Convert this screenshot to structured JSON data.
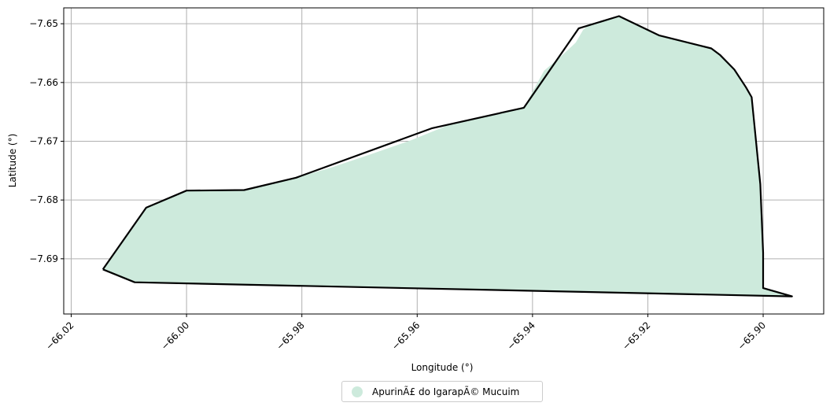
{
  "chart_data": {
    "type": "map",
    "xlabel": "Longitude (°)",
    "ylabel": "Latitude (°)",
    "xlim": [
      -66.0213,
      -65.8895
    ],
    "ylim": [
      -7.6994,
      -7.6473
    ],
    "grid": true,
    "x_ticks": [
      -66.02,
      -66.0,
      -65.98,
      -65.96,
      -65.94,
      -65.92,
      -65.9
    ],
    "x_tick_labels": [
      "−66.02",
      "−66.00",
      "−65.98",
      "−65.96",
      "−65.94",
      "−65.92",
      "−65.90"
    ],
    "y_ticks": [
      -7.65,
      -7.66,
      -7.67,
      -7.68,
      -7.69
    ],
    "y_tick_labels": [
      "−7.65",
      "−7.66",
      "−7.67",
      "−7.68",
      "−7.69"
    ],
    "legend_position": "bottom-center",
    "legend_entries": [
      {
        "label": "ApurinÃ£ do IgarapÃ© Mucuim",
        "color": "#cdeadc"
      }
    ],
    "fill_polygon": [
      [
        -65.9312,
        -7.651
      ],
      [
        -65.93,
        -7.65
      ],
      [
        -65.925,
        -7.6487
      ],
      [
        -65.918,
        -7.652
      ],
      [
        -65.909,
        -7.6542
      ],
      [
        -65.9075,
        -7.6553
      ],
      [
        -65.905,
        -7.6578
      ],
      [
        -65.903,
        -7.6608
      ],
      [
        -65.902,
        -7.6625
      ],
      [
        -65.9005,
        -7.6773
      ],
      [
        -65.9,
        -7.689
      ],
      [
        -65.9,
        -7.695
      ],
      [
        -65.895,
        -7.6964
      ],
      [
        -66.009,
        -7.694
      ],
      [
        -66.0145,
        -7.6918
      ],
      [
        -66.007,
        -7.6813
      ],
      [
        -66.0,
        -7.6784
      ],
      [
        -65.99,
        -7.6783
      ],
      [
        -65.981,
        -7.6762
      ],
      [
        -65.975,
        -7.6745
      ],
      [
        -65.968,
        -7.6722
      ],
      [
        -65.961,
        -7.6698
      ],
      [
        -65.955,
        -7.6674
      ],
      [
        -65.9415,
        -7.6643
      ],
      [
        -65.938,
        -7.658
      ],
      [
        -65.935,
        -7.6555
      ],
      [
        -65.9325,
        -7.6532
      ]
    ],
    "boundary": [
      [
        -66.0145,
        -7.6918
      ],
      [
        -66.007,
        -7.6813
      ],
      [
        -66.0,
        -7.6784
      ],
      [
        -65.99,
        -7.6783
      ],
      [
        -65.981,
        -7.6762
      ],
      [
        -65.9575,
        -7.6678
      ],
      [
        -65.9415,
        -7.6643
      ],
      [
        -65.932,
        -7.6508
      ],
      [
        -65.925,
        -7.6487
      ],
      [
        -65.918,
        -7.652
      ],
      [
        -65.909,
        -7.6542
      ],
      [
        -65.9075,
        -7.6553
      ],
      [
        -65.905,
        -7.6578
      ],
      [
        -65.903,
        -7.6608
      ],
      [
        -65.902,
        -7.6625
      ],
      [
        -65.9005,
        -7.6773
      ],
      [
        -65.9,
        -7.689
      ],
      [
        -65.9,
        -7.695
      ],
      [
        -65.895,
        -7.6964
      ],
      [
        -66.009,
        -7.694
      ],
      [
        -66.0145,
        -7.6918
      ]
    ]
  }
}
